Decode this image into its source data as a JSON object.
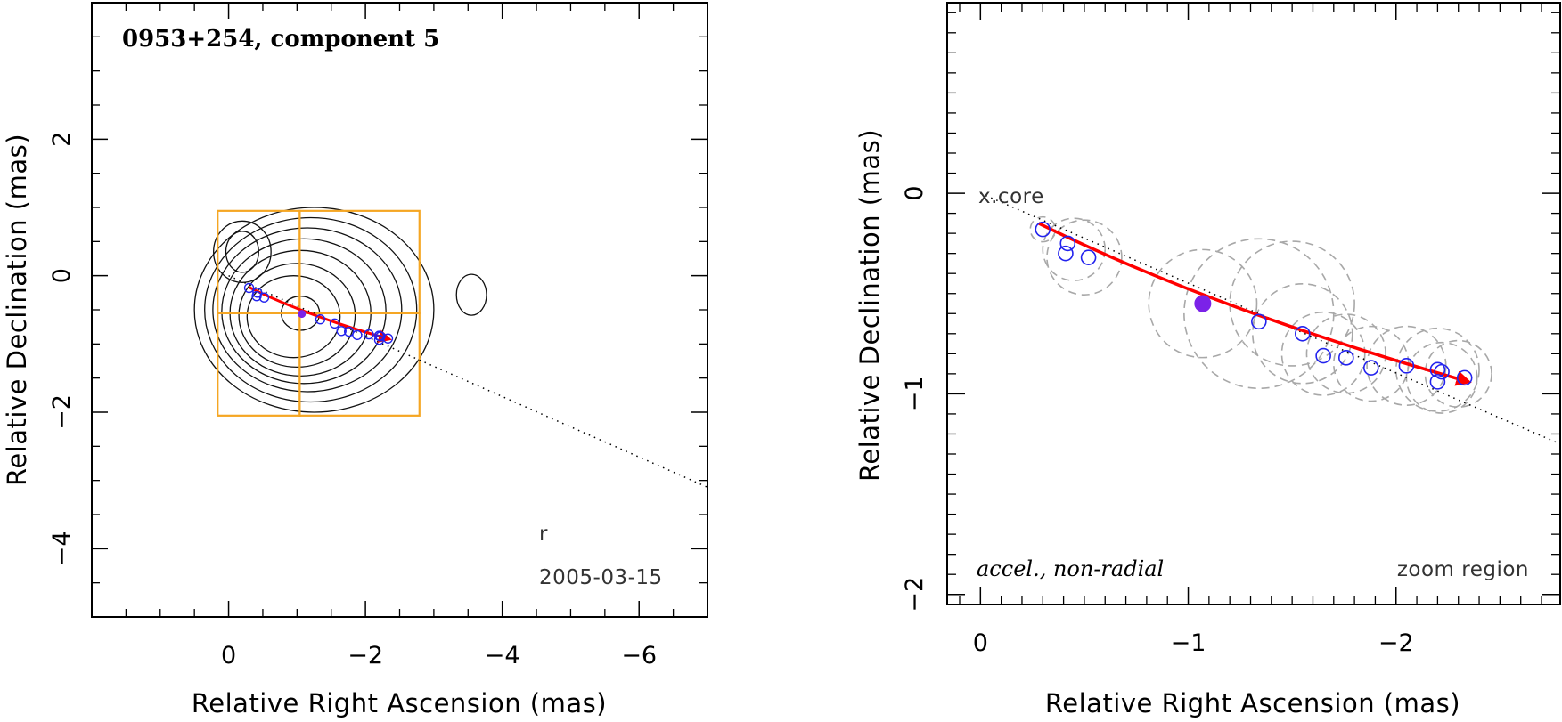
{
  "chart_data": [
    {
      "type": "scatter",
      "panel": "left",
      "title": "0953+254, component 5",
      "xlabel": "Relative Right Ascension (mas)",
      "ylabel": "Relative Declination (mas)",
      "xlim": [
        2,
        -7
      ],
      "ylim": [
        -5,
        4
      ],
      "xticks": [
        0,
        -2,
        -4,
        -6
      ],
      "xtick_labels": [
        "0",
        "−2",
        "−4",
        "−6"
      ],
      "yticks": [
        2,
        0,
        -2,
        -4
      ],
      "ytick_labels": [
        "2",
        "0",
        "−2",
        "−4"
      ],
      "date_label": "2005-03-15",
      "beam_mark": "r",
      "core_line": {
        "from": [
          0,
          0
        ],
        "to": [
          -7,
          -3.1
        ],
        "style": "dotted"
      },
      "zoom_boxes": [
        {
          "x0": 0.16,
          "x1": -1.04,
          "y0": 0.95,
          "y1": -0.55
        },
        {
          "x0": -1.04,
          "x1": -2.79,
          "y0": 0.95,
          "y1": -0.55
        },
        {
          "x0": 0.16,
          "x1": -1.04,
          "y0": -0.55,
          "y1": -2.05
        },
        {
          "x0": -1.04,
          "x1": -2.79,
          "y0": -0.55,
          "y1": -2.05
        }
      ],
      "contours": [
        {
          "cx": -1.25,
          "cy": -0.5,
          "rx": 1.75,
          "ry": 1.5
        },
        {
          "cx": -1.2,
          "cy": -0.5,
          "rx": 1.55,
          "ry": 1.35
        },
        {
          "cx": -1.15,
          "cy": -0.5,
          "rx": 1.38,
          "ry": 1.2
        },
        {
          "cx": -1.1,
          "cy": -0.52,
          "rx": 1.2,
          "ry": 1.06
        },
        {
          "cx": -1.05,
          "cy": -0.55,
          "rx": 1.03,
          "ry": 0.92
        },
        {
          "cx": -1.0,
          "cy": -0.58,
          "rx": 0.85,
          "ry": 0.76
        },
        {
          "cx": -0.95,
          "cy": -0.6,
          "rx": 0.68,
          "ry": 0.6
        },
        {
          "cx": -0.2,
          "cy": 0.35,
          "rx": 0.42,
          "ry": 0.45
        },
        {
          "cx": -0.2,
          "cy": 0.35,
          "rx": 0.24,
          "ry": 0.3
        },
        {
          "cx": -1.05,
          "cy": -0.55,
          "rx": 0.28,
          "ry": 0.25
        },
        {
          "cx": -3.55,
          "cy": -0.28,
          "rx": 0.22,
          "ry": 0.3
        }
      ],
      "track": {
        "x": [
          -0.3,
          -1.07,
          -2.35
        ],
        "y": [
          -0.17,
          -0.56,
          -0.93
        ]
      },
      "key_point": {
        "x": -1.07,
        "y": -0.56
      },
      "points": [
        {
          "x": -0.3,
          "y": -0.18
        },
        {
          "x": -0.42,
          "y": -0.25
        },
        {
          "x": -0.41,
          "y": -0.3
        },
        {
          "x": -0.52,
          "y": -0.32
        },
        {
          "x": -1.34,
          "y": -0.64
        },
        {
          "x": -1.55,
          "y": -0.7
        },
        {
          "x": -1.65,
          "y": -0.81
        },
        {
          "x": -1.76,
          "y": -0.82
        },
        {
          "x": -1.88,
          "y": -0.87
        },
        {
          "x": -2.05,
          "y": -0.86
        },
        {
          "x": -2.2,
          "y": -0.88
        },
        {
          "x": -2.22,
          "y": -0.89
        },
        {
          "x": -2.2,
          "y": -0.94
        },
        {
          "x": -2.33,
          "y": -0.92
        }
      ]
    },
    {
      "type": "scatter",
      "panel": "right",
      "xlabel": "Relative Right Ascension (mas)",
      "ylabel": "Relative Declination (mas)",
      "xlim": [
        0.16,
        -2.79
      ],
      "ylim": [
        -2.05,
        0.95
      ],
      "xticks": [
        0,
        -1,
        -2
      ],
      "xtick_labels": [
        "0",
        "−1",
        "−2"
      ],
      "yticks": [
        0,
        -1,
        -2
      ],
      "ytick_labels": [
        "0",
        "−1",
        "−2"
      ],
      "core_label": "x.core",
      "annotation": "accel., non-radial",
      "region_label": "zoom region",
      "core_line": {
        "from": [
          0,
          0
        ],
        "to": [
          -2.79,
          -1.25
        ],
        "style": "dotted"
      },
      "track": {
        "x": [
          -0.28,
          -1.07,
          -2.35
        ],
        "y": [
          -0.15,
          -0.55,
          -0.94
        ]
      },
      "key_point": {
        "x": -1.07,
        "y": -0.55
      },
      "points": [
        {
          "x": -0.3,
          "y": -0.18
        },
        {
          "x": -0.42,
          "y": -0.25
        },
        {
          "x": -0.41,
          "y": -0.3
        },
        {
          "x": -0.52,
          "y": -0.32
        },
        {
          "x": -1.34,
          "y": -0.64
        },
        {
          "x": -1.55,
          "y": -0.7
        },
        {
          "x": -1.65,
          "y": -0.81
        },
        {
          "x": -1.76,
          "y": -0.82
        },
        {
          "x": -1.88,
          "y": -0.87
        },
        {
          "x": -2.05,
          "y": -0.86
        },
        {
          "x": -2.2,
          "y": -0.88
        },
        {
          "x": -2.22,
          "y": -0.89
        },
        {
          "x": -2.2,
          "y": -0.94
        },
        {
          "x": -2.33,
          "y": -0.92
        }
      ],
      "uncertainty_circles": [
        {
          "x": -0.3,
          "y": -0.18,
          "r": 0.06
        },
        {
          "x": -0.45,
          "y": -0.28,
          "r": 0.15
        },
        {
          "x": -0.5,
          "y": -0.32,
          "r": 0.18
        },
        {
          "x": -1.07,
          "y": -0.55,
          "r": 0.26
        },
        {
          "x": -1.34,
          "y": -0.6,
          "r": 0.36
        },
        {
          "x": -1.5,
          "y": -0.55,
          "r": 0.3
        },
        {
          "x": -1.55,
          "y": -0.7,
          "r": 0.24
        },
        {
          "x": -1.65,
          "y": -0.8,
          "r": 0.2
        },
        {
          "x": -1.76,
          "y": -0.8,
          "r": 0.19
        },
        {
          "x": -1.88,
          "y": -0.85,
          "r": 0.18
        },
        {
          "x": -2.05,
          "y": -0.86,
          "r": 0.19
        },
        {
          "x": -2.2,
          "y": -0.88,
          "r": 0.2
        },
        {
          "x": -2.22,
          "y": -0.92,
          "r": 0.17
        },
        {
          "x": -2.3,
          "y": -0.9,
          "r": 0.16
        }
      ]
    }
  ]
}
